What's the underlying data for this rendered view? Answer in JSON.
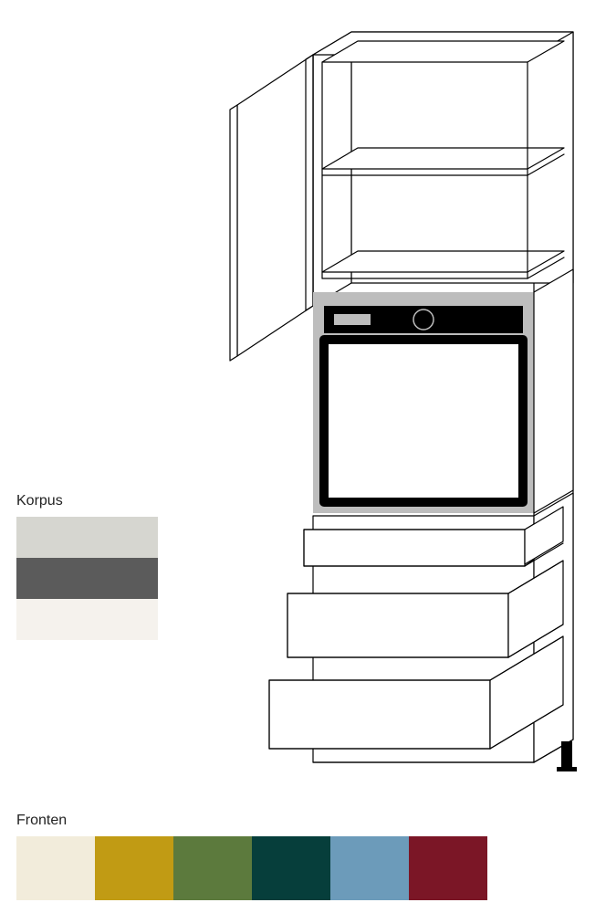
{
  "diagram": {
    "type": "infographic",
    "background_color": "#ffffff",
    "stroke_color": "#000000",
    "stroke_width": 1.2,
    "oven_panel_bg": "#bdbdbd",
    "oven_control_bar": "#000000",
    "oven_front_fill": "#ffffff",
    "oven_front_stroke": "#000000",
    "oven_front_stroke_width": 10,
    "foot_color": "#000000"
  },
  "korpus": {
    "label": "Korpus",
    "label_fontsize": 16,
    "label_color": "#222222",
    "swatches": [
      {
        "color": "#d6d6d0"
      },
      {
        "color": "#5b5b5b"
      },
      {
        "color": "#f5f2ed"
      }
    ],
    "swatch_width": 155,
    "swatch_height": 45
  },
  "fronten": {
    "label": "Fronten",
    "label_fontsize": 16,
    "label_color": "#222222",
    "swatches": [
      {
        "color": "#f2ecdb"
      },
      {
        "color": "#c19b14"
      },
      {
        "color": "#5c7a3d"
      },
      {
        "color": "#063e3b"
      },
      {
        "color": "#6c9bba"
      },
      {
        "color": "#7b1626"
      }
    ],
    "swatch_width": 86,
    "swatch_height": 70
  }
}
